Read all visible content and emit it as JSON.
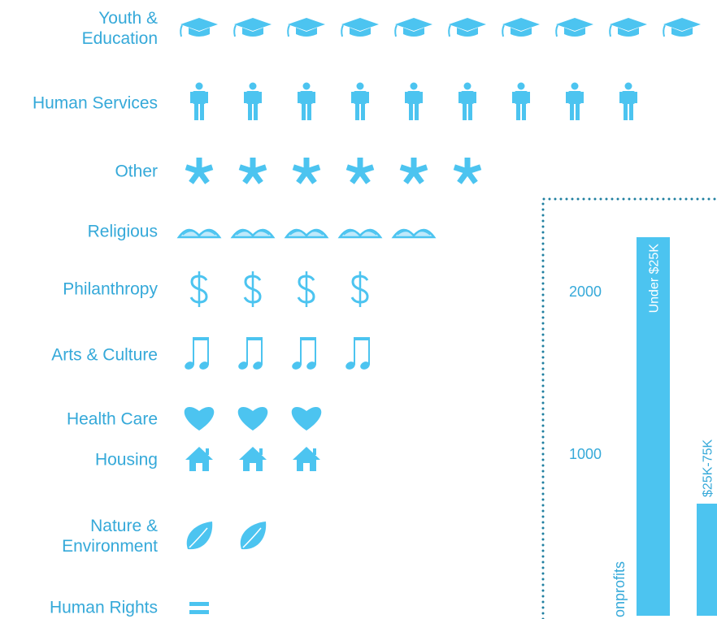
{
  "chart_data": [
    {
      "type": "pictogram",
      "categories": [
        "Youth &\nEducation",
        "Human Services",
        "Other",
        "Religious",
        "Philanthropy",
        "Arts & Culture",
        "Health Care",
        "Housing",
        "Nature &\nEnvironment",
        "Human Rights"
      ],
      "values": [
        10,
        9,
        6,
        5,
        4,
        4,
        3,
        3,
        2,
        1
      ],
      "color": "#4cc4f0"
    },
    {
      "type": "bar",
      "categories": [
        "Under $25K",
        "$25K-75K"
      ],
      "values": [
        2330,
        690
      ],
      "ylabel": "onprofits",
      "ylim": [
        0,
        2500
      ],
      "yticks": [
        1000,
        2000
      ],
      "color": "#4cc4f0",
      "frame_color": "#1f7fa0"
    }
  ]
}
